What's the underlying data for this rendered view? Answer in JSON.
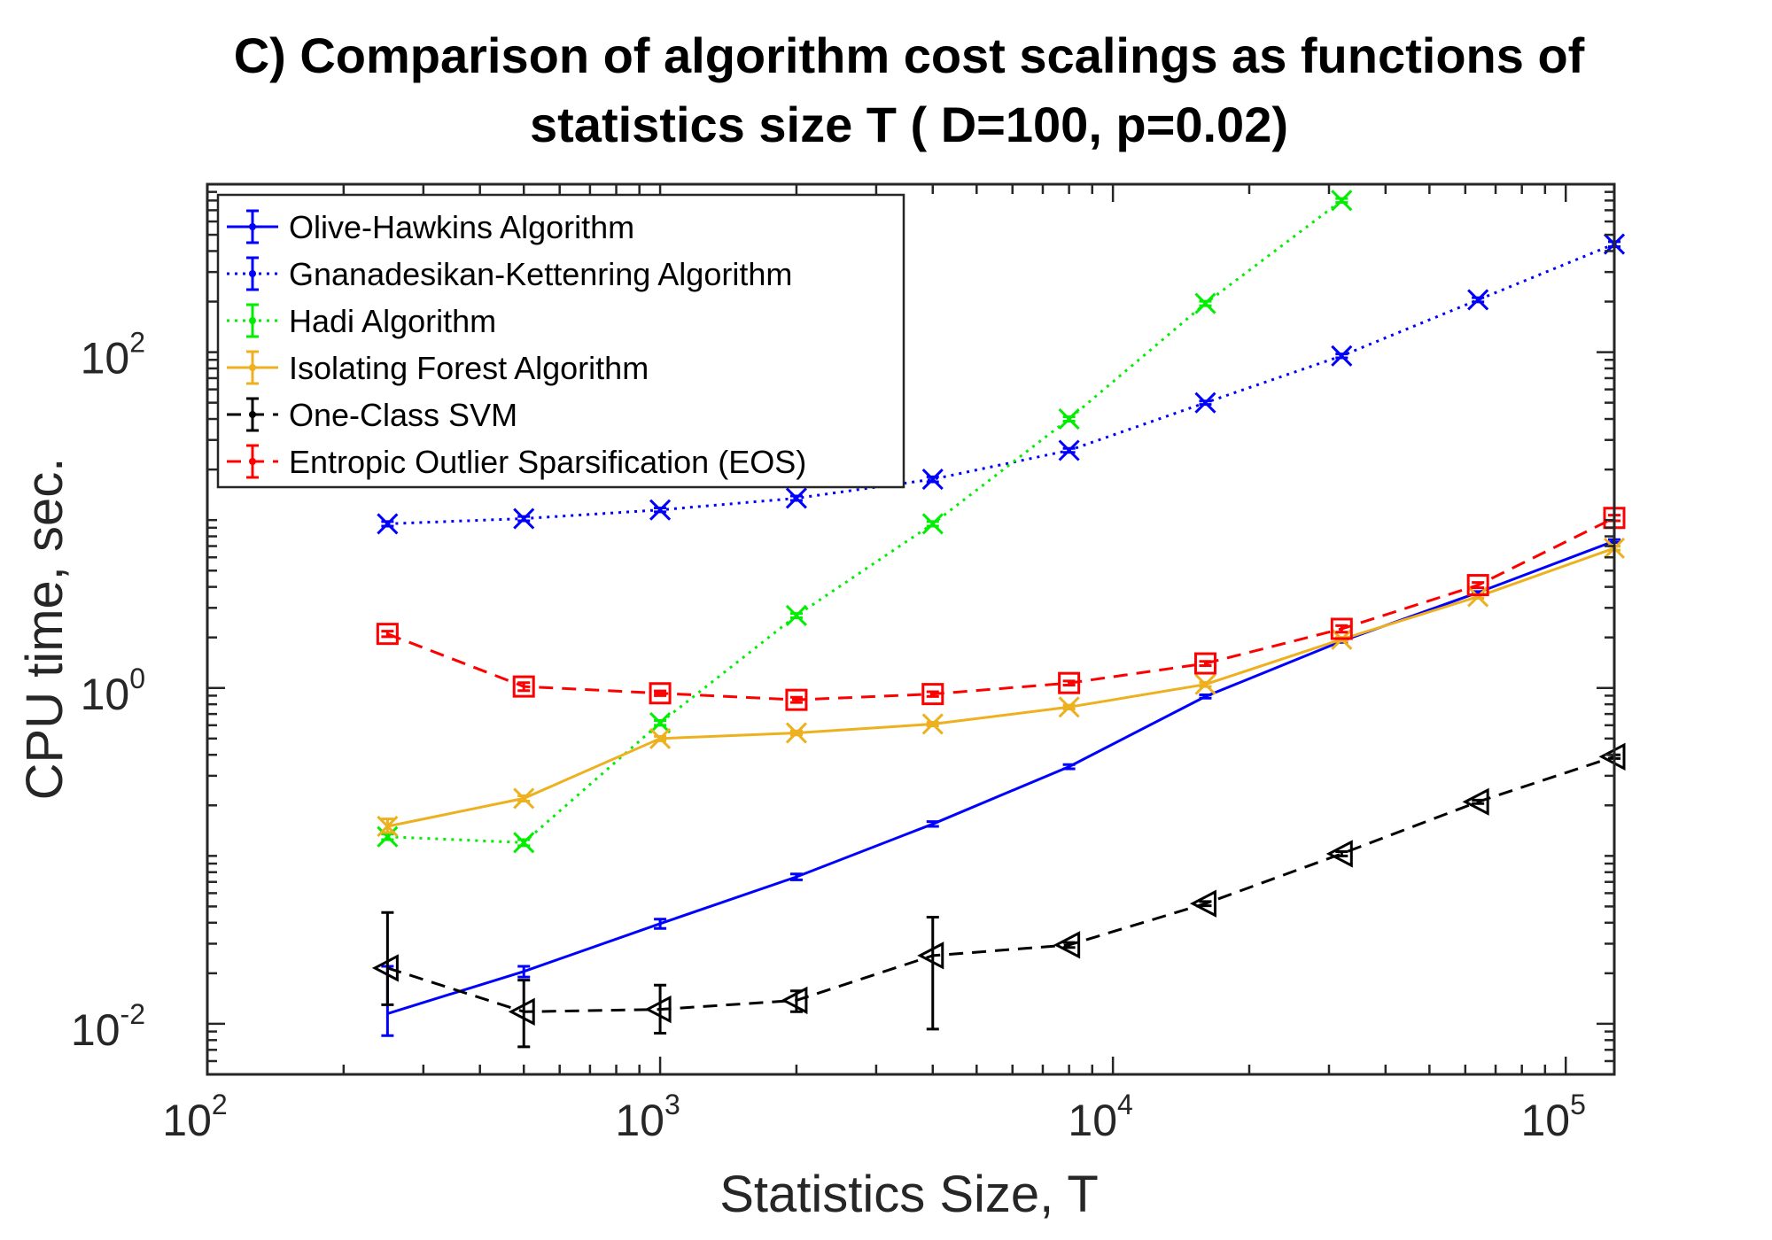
{
  "chart_data": {
    "type": "line",
    "title": "C) Comparison of algorithm cost scalings as functions of",
    "title_line2": "statistics size T ( D=100, p=0.02)",
    "xlabel": "Statistics Size, T",
    "ylabel": "CPU time, sec.",
    "x_scale": "log",
    "y_scale": "log",
    "xlim": [
      100,
      128000
    ],
    "ylim": [
      0.005,
      1000
    ],
    "grid": false,
    "legend_position": "top-left",
    "x_ticks": [
      {
        "value": 100,
        "base": "10",
        "exp": "2"
      },
      {
        "value": 1000,
        "base": "10",
        "exp": "3"
      },
      {
        "value": 10000,
        "base": "10",
        "exp": "4"
      },
      {
        "value": 100000,
        "base": "10",
        "exp": "5"
      }
    ],
    "y_ticks": [
      {
        "value": 0.01,
        "base": "10",
        "exp": "-2"
      },
      {
        "value": 1,
        "base": "10",
        "exp": "0"
      },
      {
        "value": 100,
        "base": "10",
        "exp": "2"
      }
    ],
    "series": [
      {
        "name": "Olive-Hawkins Algorithm",
        "color": "#0000ff",
        "dash": "solid",
        "marker": "none",
        "x": [
          250,
          500,
          1000,
          2000,
          4000,
          8000,
          16000,
          32000,
          64000,
          128000
        ],
        "y": [
          0.0115,
          0.0205,
          0.0395,
          0.075,
          0.155,
          0.34,
          0.89,
          1.9,
          3.7,
          7.5
        ],
        "err_low": [
          0.0085,
          0.019,
          0.037,
          0.072,
          0.15,
          0.33,
          0.87,
          1.87,
          3.65,
          7.35
        ],
        "err_high": [
          0.022,
          0.022,
          0.042,
          0.078,
          0.16,
          0.35,
          0.91,
          1.93,
          3.75,
          7.65
        ]
      },
      {
        "name": "Gnanadesikan-Kettenring Algorithm",
        "color": "#0000ff",
        "dash": "dotted",
        "marker": "x",
        "x": [
          250,
          500,
          1000,
          2000,
          4000,
          8000,
          16000,
          32000,
          64000,
          128000
        ],
        "y": [
          9.5,
          10.2,
          11.5,
          13.5,
          17.5,
          26,
          50,
          95,
          205,
          440
        ],
        "err_low": [
          9.2,
          9.9,
          11.2,
          13.1,
          16.9,
          25.3,
          48.8,
          92.5,
          199,
          425
        ],
        "err_high": [
          9.8,
          10.5,
          11.8,
          13.9,
          18.1,
          26.7,
          51.2,
          97.5,
          211,
          455
        ]
      },
      {
        "name": "Hadi Algorithm",
        "color": "#00ee00",
        "dash": "dotted",
        "marker": "x",
        "x": [
          250,
          500,
          1000,
          2000,
          4000,
          8000,
          16000,
          32000
        ],
        "y": [
          0.13,
          0.12,
          0.62,
          2.7,
          9.5,
          40,
          195,
          800
        ],
        "err_low": [
          0.125,
          0.115,
          0.6,
          2.62,
          9.2,
          38.8,
          189,
          778
        ],
        "err_high": [
          0.135,
          0.125,
          0.64,
          2.78,
          9.8,
          41.2,
          201,
          822
        ]
      },
      {
        "name": "Isolating Forest Algorithm",
        "color": "#edb120",
        "dash": "solid",
        "marker": "x",
        "x": [
          250,
          500,
          1000,
          2000,
          4000,
          8000,
          16000,
          32000,
          64000,
          128000
        ],
        "y": [
          0.15,
          0.22,
          0.5,
          0.54,
          0.61,
          0.77,
          1.05,
          1.95,
          3.5,
          6.8
        ],
        "err_low": [
          0.138,
          0.212,
          0.485,
          0.525,
          0.595,
          0.75,
          1.02,
          1.9,
          3.42,
          6.62
        ],
        "err_high": [
          0.166,
          0.228,
          0.515,
          0.555,
          0.625,
          0.79,
          1.08,
          2.0,
          3.58,
          6.98
        ]
      },
      {
        "name": "One-Class SVM",
        "color": "#000000",
        "dash": "dashed",
        "marker": "triangle-left",
        "x": [
          250,
          500,
          1000,
          2000,
          4000,
          8000,
          16000,
          32000,
          64000,
          128000
        ],
        "y": [
          0.0215,
          0.0118,
          0.0122,
          0.0138,
          0.0255,
          0.0295,
          0.052,
          0.103,
          0.21,
          0.39
        ],
        "err_low": [
          0.013,
          0.0073,
          0.0088,
          0.0118,
          0.0093,
          0.0285,
          0.0505,
          0.1,
          0.205,
          0.38
        ],
        "err_high": [
          0.046,
          0.0182,
          0.017,
          0.0157,
          0.0432,
          0.0305,
          0.0535,
          0.106,
          0.215,
          0.4
        ]
      },
      {
        "name": "Entropic Outlier Sparsification (EOS)",
        "color": "#ff0000",
        "dash": "dashed",
        "marker": "square",
        "x": [
          250,
          500,
          1000,
          2000,
          4000,
          8000,
          16000,
          32000,
          64000,
          128000
        ],
        "y": [
          2.1,
          1.02,
          0.93,
          0.85,
          0.92,
          1.07,
          1.4,
          2.25,
          4.1,
          10.3
        ],
        "err_low": [
          2.02,
          0.965,
          0.9,
          0.82,
          0.89,
          1.04,
          1.36,
          2.15,
          3.95,
          9.9
        ],
        "err_high": [
          2.18,
          1.075,
          0.96,
          0.88,
          0.95,
          1.1,
          1.44,
          2.35,
          4.25,
          10.7
        ]
      }
    ]
  }
}
